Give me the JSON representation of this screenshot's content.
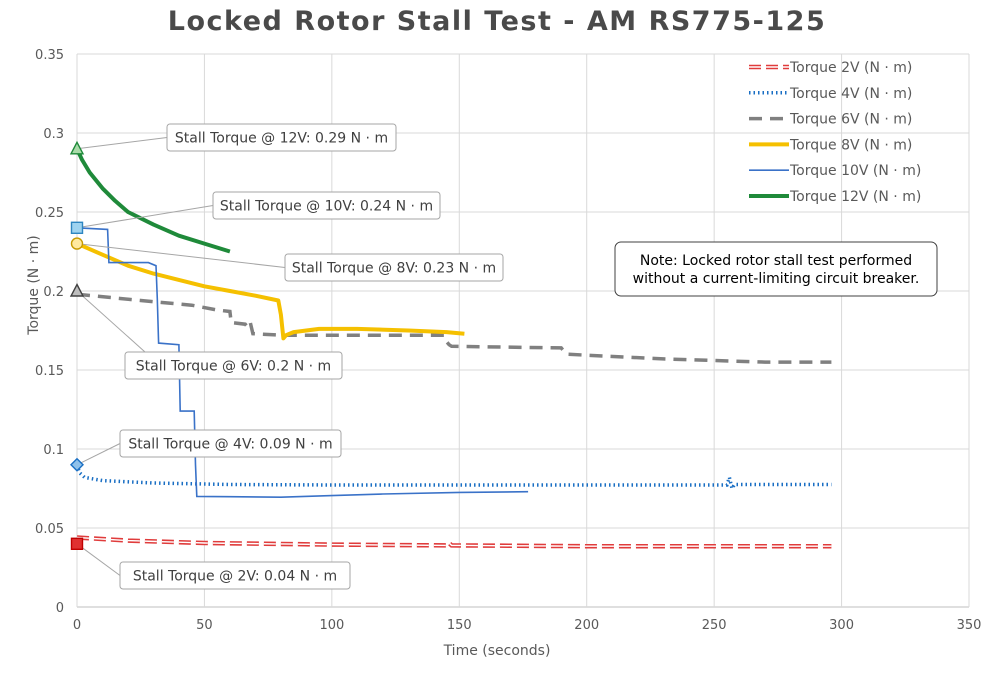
{
  "chart_data": {
    "type": "line",
    "title": "Locked Rotor Stall Test - AM RS775-125",
    "xlabel": "Time (seconds)",
    "ylabel": "Torque (N · m)",
    "xlim": [
      0,
      350
    ],
    "ylim": [
      0,
      0.35
    ],
    "x_ticks": [
      0,
      50,
      100,
      150,
      200,
      250,
      300,
      350
    ],
    "y_ticks": [
      0,
      0.05,
      0.1,
      0.15,
      0.2,
      0.25,
      0.3,
      0.35
    ],
    "x_tick_labels": [
      "0",
      "50",
      "100",
      "150",
      "200",
      "250",
      "300",
      "350"
    ],
    "y_tick_labels": [
      "0",
      "0.05",
      "0.1",
      "0.15",
      "0.2",
      "0.25",
      "0.3",
      "0.35"
    ],
    "grid": true,
    "legend_position": "top-right",
    "series": [
      {
        "name": "Torque 2V (N · m)",
        "color": "#e03c3c",
        "style": "double-dash",
        "points": [
          [
            0,
            0.044
          ],
          [
            20,
            0.042
          ],
          [
            50,
            0.0405
          ],
          [
            100,
            0.0395
          ],
          [
            145,
            0.039
          ],
          [
            146,
            0.0405
          ],
          [
            147,
            0.039
          ],
          [
            200,
            0.0385
          ],
          [
            250,
            0.0385
          ],
          [
            296,
            0.0385
          ]
        ]
      },
      {
        "name": "Torque 4V (N · m)",
        "color": "#1a6fc4",
        "style": "dotted",
        "points": [
          [
            0,
            0.09
          ],
          [
            1,
            0.085
          ],
          [
            3,
            0.082
          ],
          [
            10,
            0.08
          ],
          [
            30,
            0.0785
          ],
          [
            60,
            0.0775
          ],
          [
            100,
            0.0772
          ],
          [
            150,
            0.0772
          ],
          [
            200,
            0.0772
          ],
          [
            255,
            0.0772
          ],
          [
            256,
            0.082
          ],
          [
            257,
            0.075
          ],
          [
            258,
            0.0775
          ],
          [
            296,
            0.0775
          ]
        ]
      },
      {
        "name": "Torque 6V (N · m)",
        "color": "#808080",
        "style": "dashed",
        "points": [
          [
            0,
            0.198
          ],
          [
            25,
            0.194
          ],
          [
            45,
            0.191
          ],
          [
            55,
            0.188
          ],
          [
            60,
            0.187
          ],
          [
            60.5,
            0.18
          ],
          [
            66,
            0.179
          ],
          [
            67,
            0.177
          ],
          [
            68,
            0.18
          ],
          [
            69,
            0.173
          ],
          [
            80,
            0.172
          ],
          [
            100,
            0.172
          ],
          [
            144,
            0.172
          ],
          [
            145,
            0.168
          ],
          [
            146,
            0.166
          ],
          [
            147,
            0.165
          ],
          [
            190,
            0.164
          ],
          [
            191,
            0.162
          ],
          [
            192,
            0.16
          ],
          [
            230,
            0.157
          ],
          [
            270,
            0.155
          ],
          [
            296,
            0.155
          ]
        ]
      },
      {
        "name": "Torque 8V (N · m)",
        "color": "#f5c000",
        "style": "solid-thick",
        "points": [
          [
            0,
            0.23
          ],
          [
            10,
            0.223
          ],
          [
            20,
            0.216
          ],
          [
            30,
            0.211
          ],
          [
            40,
            0.207
          ],
          [
            50,
            0.203
          ],
          [
            60,
            0.2
          ],
          [
            70,
            0.197
          ],
          [
            79,
            0.194
          ],
          [
            80,
            0.185
          ],
          [
            81,
            0.17
          ],
          [
            82,
            0.172
          ],
          [
            85,
            0.174
          ],
          [
            95,
            0.176
          ],
          [
            110,
            0.176
          ],
          [
            130,
            0.175
          ],
          [
            145,
            0.174
          ],
          [
            152,
            0.173
          ]
        ]
      },
      {
        "name": "Torque 10V (N · m)",
        "color": "#3a72c8",
        "style": "solid-thin",
        "points": [
          [
            0,
            0.24
          ],
          [
            12,
            0.239
          ],
          [
            12.5,
            0.218
          ],
          [
            28,
            0.218
          ],
          [
            31,
            0.216
          ],
          [
            31.5,
            0.195
          ],
          [
            32,
            0.167
          ],
          [
            40,
            0.166
          ],
          [
            40.5,
            0.124
          ],
          [
            46,
            0.124
          ],
          [
            46.5,
            0.09
          ],
          [
            47,
            0.07
          ],
          [
            60,
            0.0698
          ],
          [
            80,
            0.0695
          ],
          [
            100,
            0.0705
          ],
          [
            120,
            0.0715
          ],
          [
            150,
            0.0725
          ],
          [
            177,
            0.073
          ]
        ]
      },
      {
        "name": "Torque 12V (N · m)",
        "color": "#1f8a3a",
        "style": "solid-thick",
        "points": [
          [
            0,
            0.29
          ],
          [
            2,
            0.283
          ],
          [
            5,
            0.275
          ],
          [
            10,
            0.265
          ],
          [
            15,
            0.257
          ],
          [
            20,
            0.25
          ],
          [
            30,
            0.242
          ],
          [
            40,
            0.235
          ],
          [
            50,
            0.23
          ],
          [
            60,
            0.225
          ]
        ]
      }
    ],
    "markers": [
      {
        "series": 0,
        "x": 0,
        "y": 0.04,
        "shape": "square",
        "fill": "#e03030",
        "stroke": "#c00000"
      },
      {
        "series": 1,
        "x": 0,
        "y": 0.09,
        "shape": "diamond",
        "fill": "#8fc1ea",
        "stroke": "#1a6fc4"
      },
      {
        "series": 2,
        "x": 0,
        "y": 0.2,
        "shape": "triangle",
        "fill": "#bdbdbd",
        "stroke": "#404040"
      },
      {
        "series": 3,
        "x": 0,
        "y": 0.23,
        "shape": "circle",
        "fill": "#ffe9a0",
        "stroke": "#c79a00"
      },
      {
        "series": 4,
        "x": 0,
        "y": 0.24,
        "shape": "square",
        "fill": "#9ed3f0",
        "stroke": "#2e86c1"
      },
      {
        "series": 5,
        "x": 0,
        "y": 0.29,
        "shape": "triangle",
        "fill": "#a9dba9",
        "stroke": "#1f8a3a"
      }
    ],
    "annotations": [
      {
        "text": "Stall Torque @ 12V: 0.29 N · m",
        "x": 0,
        "y": 0.29
      },
      {
        "text": "Stall Torque @ 10V: 0.24 N · m",
        "x": 0,
        "y": 0.24
      },
      {
        "text": "Stall Torque @ 8V: 0.23 N · m",
        "x": 0,
        "y": 0.23
      },
      {
        "text": "Stall Torque @ 6V: 0.2 N · m",
        "x": 0,
        "y": 0.2
      },
      {
        "text": "Stall Torque @ 4V: 0.09 N · m",
        "x": 0,
        "y": 0.09
      },
      {
        "text": "Stall Torque @ 2V: 0.04 N · m",
        "x": 0,
        "y": 0.04
      }
    ],
    "note": {
      "lines": [
        "Note: Locked rotor stall test performed",
        "without a current-limiting circuit breaker."
      ]
    }
  }
}
